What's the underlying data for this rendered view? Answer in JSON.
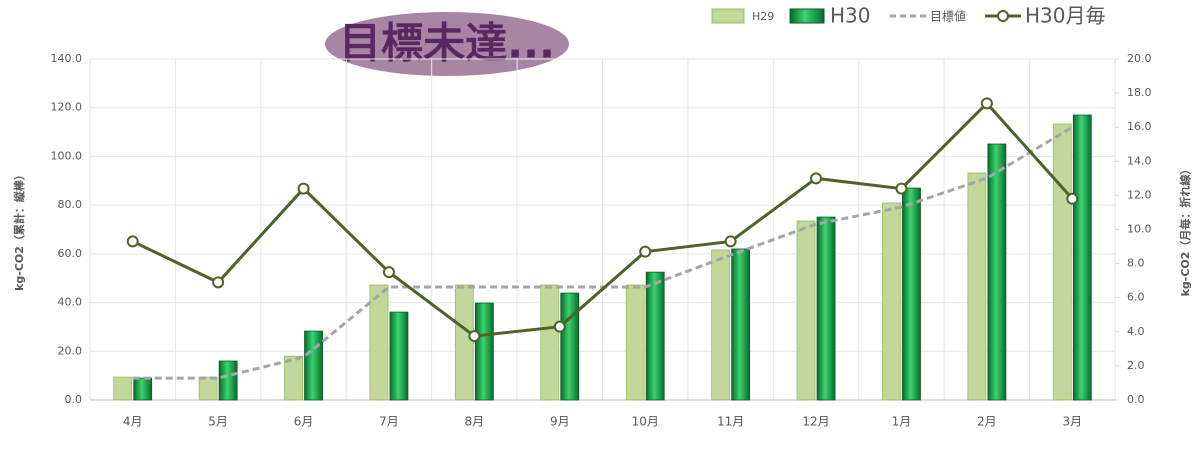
{
  "chart_data": {
    "type": "bar",
    "title": "目標未達...",
    "y_label": "kg-CO2（累計：縦棒）",
    "y2_label": "kg-CO2（月毎：折れ線）",
    "categories": [
      "4月",
      "5月",
      "6月",
      "7月",
      "8月",
      "9月",
      "10月",
      "11月",
      "12月",
      "1月",
      "2月",
      "3月"
    ],
    "series": [
      {
        "name": "H29",
        "type": "bar",
        "color": "#c3d69b",
        "values": [
          9.4,
          9.4,
          18,
          47.2,
          47.2,
          47.2,
          47.2,
          61.6,
          73.5,
          80.9,
          93.2,
          113.3
        ]
      },
      {
        "name": "H30",
        "type": "bar",
        "color": "#1a9f4a",
        "values": [
          9,
          16,
          28.3,
          36.1,
          39.8,
          43.9,
          52.5,
          62,
          75.1,
          87,
          105.1,
          117
        ]
      },
      {
        "name": "目標値",
        "type": "line",
        "dashed": true,
        "color": "#a6a6a6",
        "values": [
          9,
          9,
          17.6,
          46.4,
          46.4,
          46.4,
          46.4,
          59.5,
          72.2,
          79.2,
          91.1,
          112
        ]
      },
      {
        "name": "H30月毎",
        "type": "line",
        "axis": "y2",
        "marker": true,
        "color": "#4f6228",
        "values": [
          9.3,
          6.9,
          12.4,
          7.5,
          3.75,
          4.3,
          8.7,
          9.3,
          13.0,
          12.4,
          17.4,
          11.8
        ]
      }
    ],
    "ylim": [
      0,
      140
    ],
    "yticks": [
      {
        "value": 0,
        "label": "0.0"
      },
      {
        "value": 20,
        "label": "20.0"
      },
      {
        "value": 40,
        "label": "40.0"
      },
      {
        "value": 60,
        "label": "60.0"
      },
      {
        "value": 80,
        "label": "80.0"
      },
      {
        "value": 100,
        "label": "100.0"
      },
      {
        "value": 120,
        "label": "120.0"
      },
      {
        "value": 140,
        "label": "140.0"
      }
    ],
    "y2lim": [
      0,
      20
    ],
    "y2ticks": [
      {
        "value": 0,
        "label": "0.0"
      },
      {
        "value": 2,
        "label": "2.0"
      },
      {
        "value": 4,
        "label": "4.0"
      },
      {
        "value": 6,
        "label": "6.0"
      },
      {
        "value": 8,
        "label": "8.0"
      },
      {
        "value": 10,
        "label": "10.0"
      },
      {
        "value": 12,
        "label": "12.0"
      },
      {
        "value": 14,
        "label": "14.0"
      },
      {
        "value": 16,
        "label": "16.0"
      },
      {
        "value": 18,
        "label": "18.0"
      },
      {
        "value": 20,
        "label": "20.0"
      }
    ],
    "grid": true
  }
}
